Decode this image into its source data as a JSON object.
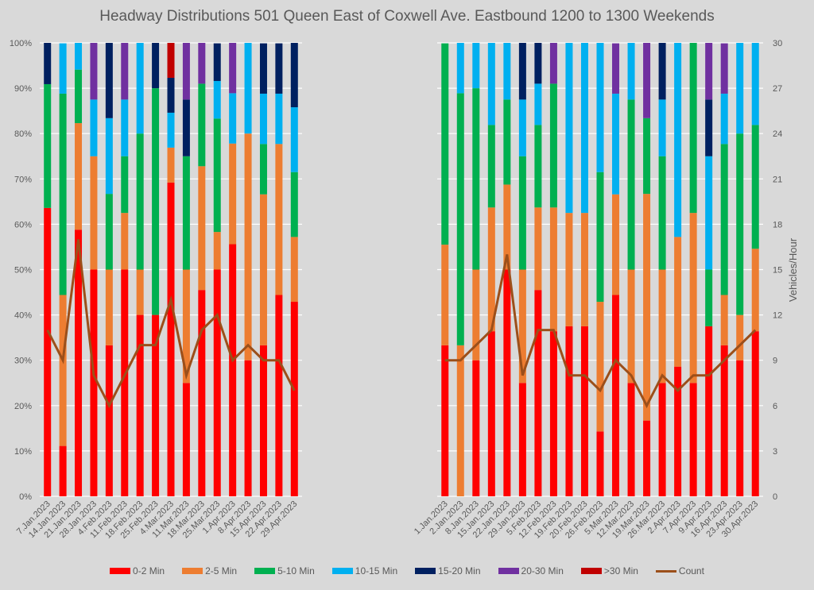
{
  "chart_data": {
    "type": "bar",
    "subtype": "stacked-percent-with-line",
    "title": "Headway Distributions 501 Queen  East of Coxwell Ave. Eastbound 1200 to 1300 Weekends",
    "ylabel_left": "",
    "ylabel_right": "Vehicles/Hour",
    "y_left_ticks": [
      "0%",
      "10%",
      "20%",
      "30%",
      "40%",
      "50%",
      "60%",
      "70%",
      "80%",
      "90%",
      "100%"
    ],
    "y_right_ticks": [
      "0",
      "3",
      "6",
      "9",
      "12",
      "15",
      "18",
      "21",
      "24",
      "27",
      "30"
    ],
    "ylim_left": [
      0,
      100
    ],
    "ylim_right": [
      0,
      30
    ],
    "grid": true,
    "legend_position": "bottom",
    "series_names": [
      "0-2 Min",
      "2-5 Min",
      "5-10 Min",
      "10-15 Min",
      "15-20 Min",
      "20-30 Min",
      ">30 Min"
    ],
    "series_colors": [
      "#ff0000",
      "#ed7d31",
      "#00b050",
      "#00b0f0",
      "#002060",
      "#7030a0",
      "#c00000"
    ],
    "line_name": "Count",
    "line_color": "#9c4f1a",
    "panels": [
      {
        "name": "left",
        "categories": [
          "7.Jan.2023",
          "14.Jan.2023",
          "21.Jan.2023",
          "28.Jan.2023",
          "4.Feb.2023",
          "11.Feb.2023",
          "18.Feb.2023",
          "25.Feb.2023",
          "4.Mar.2023",
          "11.Mar.2023",
          "18.Mar.2023",
          "25.Mar.2023",
          "1.Apr.2023",
          "8.Apr.2023",
          "15.Apr.2023",
          "22.Apr.2023",
          "29.Apr.2023"
        ],
        "series": [
          {
            "name": "0-2 Min",
            "values": [
              63.6,
              11.1,
              58.8,
              50.0,
              33.3,
              50.0,
              40.0,
              40.0,
              69.2,
              25.0,
              45.5,
              50.0,
              55.6,
              30.0,
              33.3,
              44.4,
              42.9
            ]
          },
          {
            "name": "2-5 Min",
            "values": [
              0,
              33.3,
              23.5,
              25.0,
              16.7,
              12.5,
              10.0,
              0,
              7.7,
              25.0,
              27.3,
              8.3,
              22.2,
              50.0,
              33.3,
              33.3,
              14.3
            ]
          },
          {
            "name": "5-10 Min",
            "values": [
              27.3,
              44.4,
              11.8,
              0,
              16.7,
              12.5,
              30.0,
              50.0,
              0,
              25.0,
              18.2,
              25.0,
              0,
              0,
              11.1,
              0,
              14.3
            ]
          },
          {
            "name": "10-15 Min",
            "values": [
              0,
              11.1,
              5.9,
              12.5,
              16.7,
              12.5,
              20.0,
              0,
              7.7,
              0,
              0,
              8.3,
              11.1,
              20.0,
              11.1,
              11.1,
              14.3
            ]
          },
          {
            "name": "15-20 Min",
            "values": [
              9.1,
              0,
              0,
              0,
              16.7,
              0,
              0,
              10.0,
              7.7,
              12.5,
              0,
              8.3,
              0,
              0,
              11.1,
              11.1,
              14.3
            ]
          },
          {
            "name": "20-30 Min",
            "values": [
              0,
              0,
              0,
              12.5,
              0,
              12.5,
              0,
              0,
              0,
              12.5,
              9.1,
              0,
              11.1,
              0,
              0,
              0,
              0
            ]
          },
          {
            "name": ">30 Min",
            "values": [
              0,
              0,
              0,
              0,
              0,
              0,
              0,
              0,
              7.7,
              0,
              0,
              0,
              0,
              0,
              0,
              0,
              0
            ]
          }
        ],
        "count": [
          11,
          9,
          17,
          8,
          6,
          8,
          10,
          10,
          13,
          8,
          11,
          12,
          9,
          10,
          9,
          9,
          7
        ]
      },
      {
        "name": "right",
        "categories": [
          "1.Jan.2023",
          "2.Jan.2023",
          "8.Jan.2023",
          "15.Jan.2023",
          "22.Jan.2023",
          "29.Jan.2023",
          "5.Feb.2023",
          "12.Feb.2023",
          "19.Feb.2023",
          "20.Feb.2023",
          "26.Feb.2023",
          "5.Mar.2023",
          "12.Mar.2023",
          "19.Mar.2023",
          "26.Mar.2023",
          "2.Apr.2023",
          "7.Apr.2023",
          "9.Apr.2023",
          "16.Apr.2023",
          "23.Apr.2023",
          "30.Apr.2023"
        ],
        "series": [
          {
            "name": "0-2 Min",
            "values": [
              33.3,
              0,
              30.0,
              36.4,
              50.0,
              25.0,
              45.5,
              36.4,
              37.5,
              37.5,
              14.3,
              44.4,
              25.0,
              16.7,
              25.0,
              28.6,
              25.0,
              37.5,
              33.3,
              30.0,
              36.4
            ]
          },
          {
            "name": "2-5 Min",
            "values": [
              22.2,
              33.3,
              20.0,
              27.3,
              18.75,
              25.0,
              18.2,
              27.3,
              25.0,
              25.0,
              28.6,
              22.2,
              25.0,
              50.0,
              25.0,
              28.6,
              37.5,
              0,
              11.1,
              10.0,
              18.2
            ]
          },
          {
            "name": "5-10 Min",
            "values": [
              44.4,
              55.6,
              40.0,
              18.2,
              18.75,
              25.0,
              18.2,
              27.3,
              0,
              0,
              28.6,
              0,
              37.5,
              16.7,
              25.0,
              0,
              37.5,
              12.5,
              33.3,
              40.0,
              27.3
            ]
          },
          {
            "name": "10-15 Min",
            "values": [
              0,
              11.1,
              10.0,
              18.2,
              12.5,
              12.5,
              9.1,
              0,
              37.5,
              37.5,
              28.6,
              22.2,
              12.5,
              0,
              12.5,
              42.9,
              0,
              25.0,
              11.1,
              20.0,
              18.2
            ]
          },
          {
            "name": "15-20 Min",
            "values": [
              0,
              0,
              0,
              0,
              0,
              12.5,
              9.1,
              0,
              0,
              0,
              0,
              0,
              0,
              0,
              12.5,
              0,
              0,
              12.5,
              0,
              0,
              0
            ]
          },
          {
            "name": "20-30 Min",
            "values": [
              0,
              0,
              0,
              0,
              0,
              0,
              0,
              9.1,
              0,
              0,
              0,
              11.1,
              0,
              16.7,
              0,
              0,
              0,
              12.5,
              11.1,
              0,
              0
            ]
          },
          {
            "name": ">30 Min",
            "values": [
              0,
              0,
              0,
              0,
              0,
              0,
              0,
              0,
              0,
              0,
              0,
              0,
              0,
              0,
              0,
              0,
              0,
              0,
              0,
              0,
              0
            ]
          }
        ],
        "count": [
          9,
          9,
          10,
          11,
          16,
          8,
          11,
          11,
          8,
          8,
          7,
          9,
          8,
          6,
          8,
          7,
          8,
          8,
          9,
          10,
          11
        ]
      }
    ]
  },
  "legend": [
    {
      "label": "0-2 Min",
      "color": "#ff0000",
      "kind": "bar"
    },
    {
      "label": "2-5 Min",
      "color": "#ed7d31",
      "kind": "bar"
    },
    {
      "label": "5-10 Min",
      "color": "#00b050",
      "kind": "bar"
    },
    {
      "label": "10-15 Min",
      "color": "#00b0f0",
      "kind": "bar"
    },
    {
      "label": "15-20 Min",
      "color": "#002060",
      "kind": "bar"
    },
    {
      "label": "20-30 Min",
      "color": "#7030a0",
      "kind": "bar"
    },
    {
      "label": ">30 Min",
      "color": "#c00000",
      "kind": "bar"
    },
    {
      "label": "Count",
      "color": "#9c4f1a",
      "kind": "line"
    }
  ]
}
